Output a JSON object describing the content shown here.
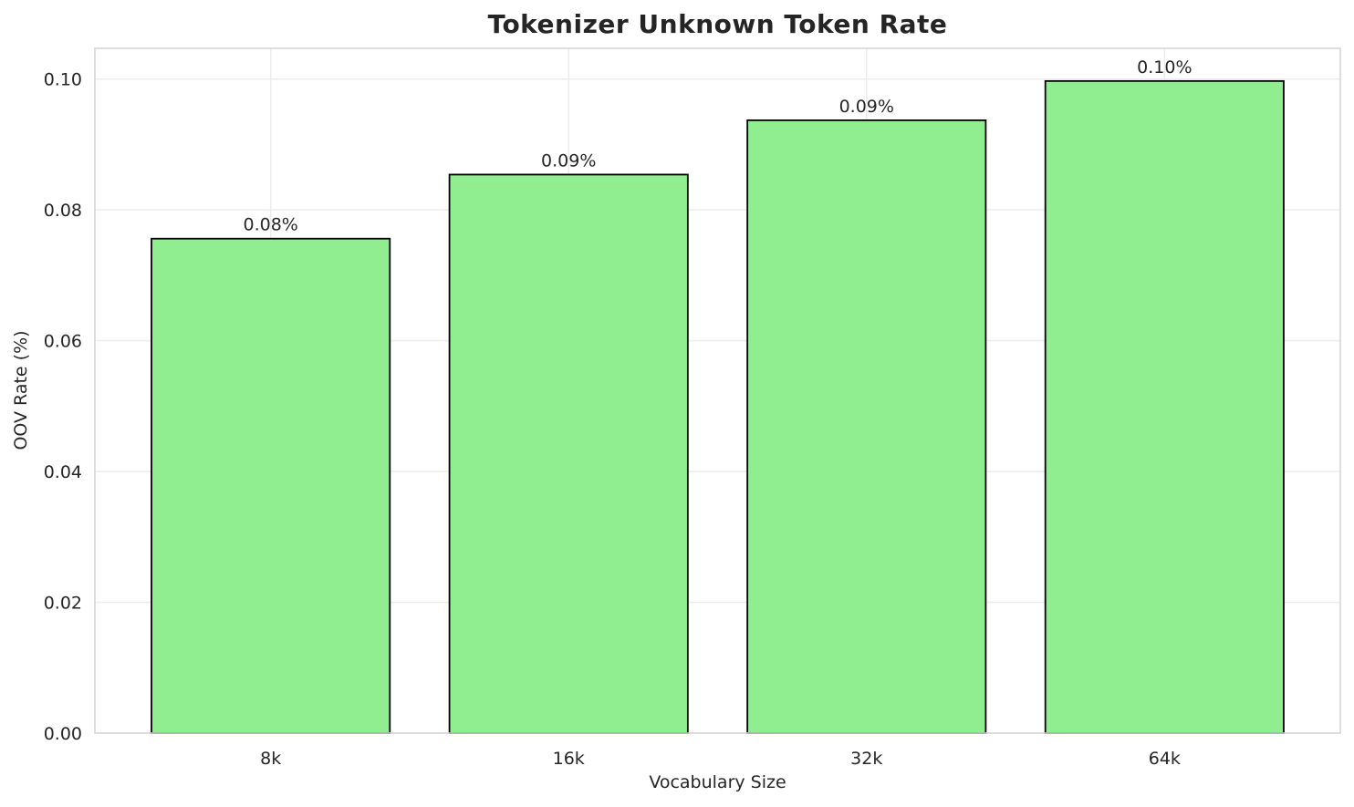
{
  "chart_data": {
    "type": "bar",
    "title": "Tokenizer Unknown Token Rate",
    "xlabel": "Vocabulary Size",
    "ylabel": "OOV Rate (%)",
    "categories": [
      "8k",
      "16k",
      "32k",
      "64k"
    ],
    "values": [
      0.0756,
      0.0854,
      0.0937,
      0.0997
    ],
    "bar_labels": [
      "0.08%",
      "0.09%",
      "0.09%",
      "0.10%"
    ],
    "yticks": [
      {
        "value": 0.0,
        "label": "0.00"
      },
      {
        "value": 0.02,
        "label": "0.02"
      },
      {
        "value": 0.04,
        "label": "0.04"
      },
      {
        "value": 0.06,
        "label": "0.06"
      },
      {
        "value": 0.08,
        "label": "0.08"
      },
      {
        "value": 0.1,
        "label": "0.10"
      }
    ],
    "ylim": [
      0,
      0.1047
    ],
    "bar_width_fraction": 0.8,
    "grid": true,
    "legend_position": "none",
    "colors": {
      "bar_fill": "#90EE90",
      "bar_edge": "#000000",
      "gridline": "#ECECEC",
      "spine": "#D5D5D5",
      "tick_text": "#262626",
      "label_text": "#262626",
      "title_text": "#252525",
      "background": "#FFFFFF"
    }
  }
}
